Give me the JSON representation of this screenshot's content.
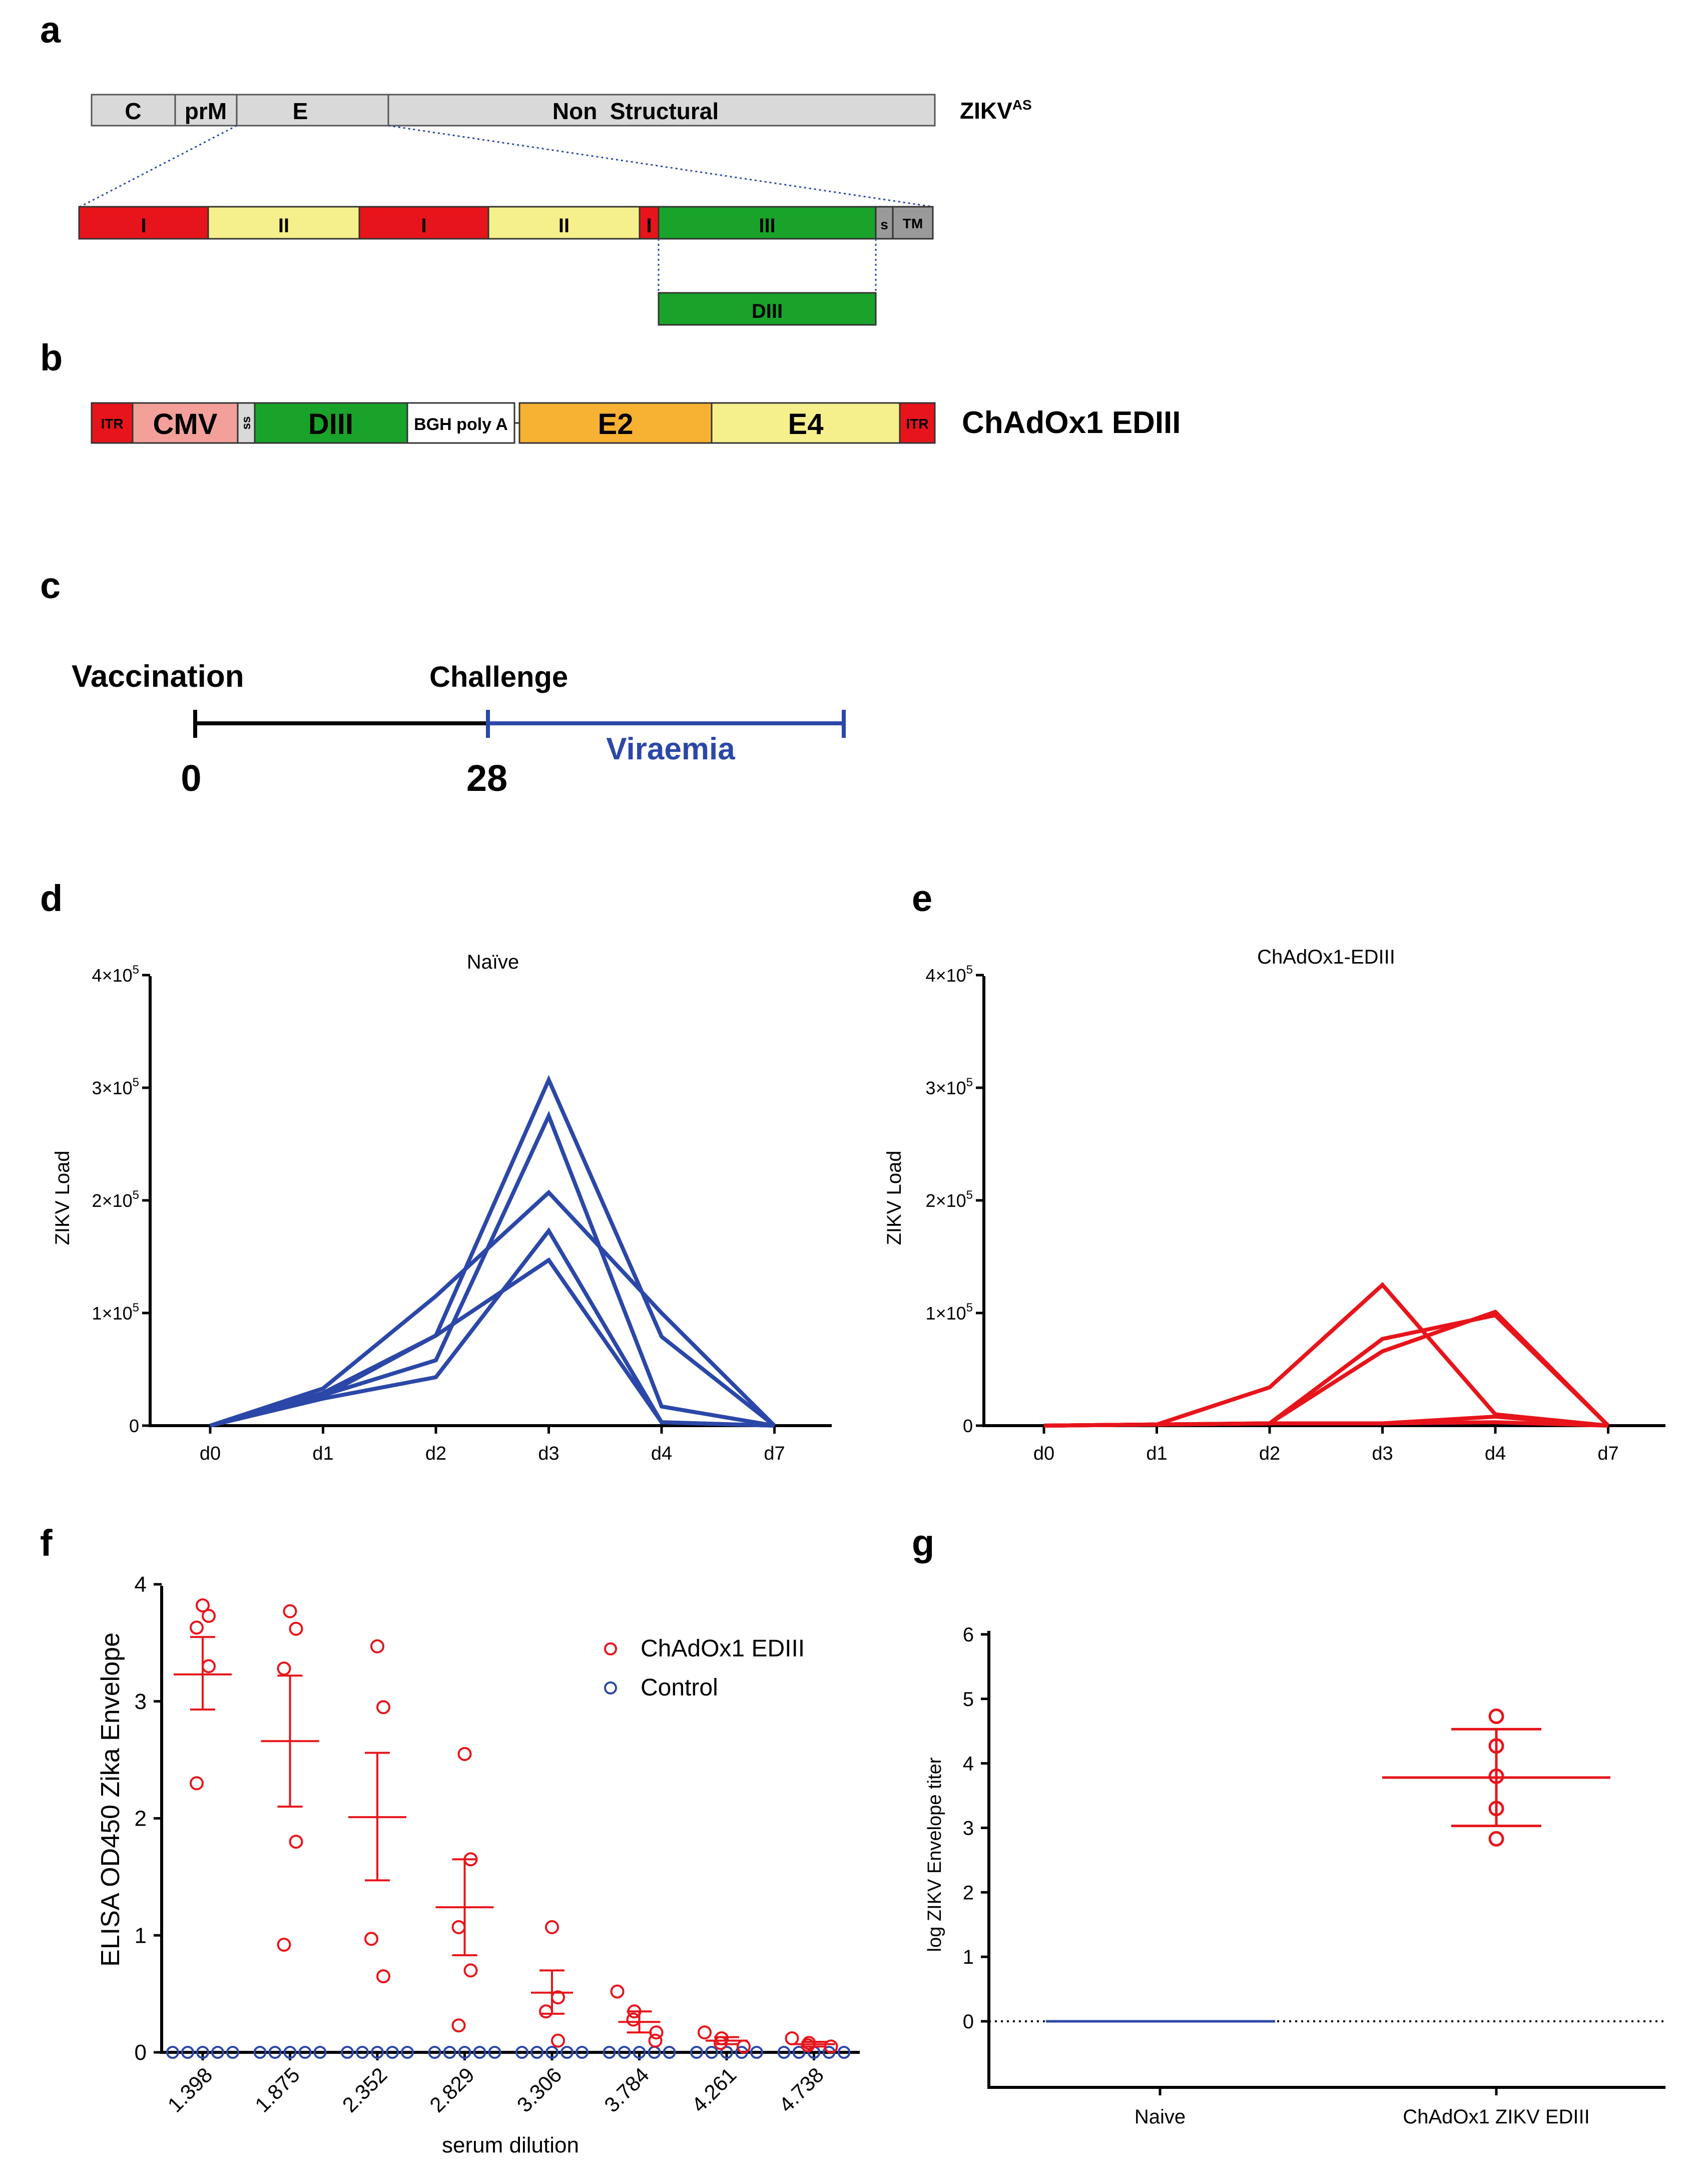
{
  "colors": {
    "red": "#e8141b",
    "blue": "#2b48a8",
    "black": "#000000",
    "grey": "#d9d9d9",
    "dark_grey": "#9a9a9a",
    "domain_red": "#e8141b",
    "domain_yellow": "#f6f08c",
    "domain_green": "#1aa32a",
    "cmv_pink": "#f4a09a",
    "e2_orange": "#f7b233",
    "e4_yellow": "#f6f08c"
  },
  "panels": {
    "a": "a",
    "b": "b",
    "c": "c",
    "d": "d",
    "e": "e",
    "f": "f",
    "g": "g"
  },
  "panel_a": {
    "top_bar": [
      "C",
      "prM",
      "E",
      "Non  Structural"
    ],
    "top_label": "ZIKV",
    "top_label_sup": "AS",
    "domains": [
      "I",
      "II",
      "I",
      "II",
      "I",
      "III",
      "s",
      "TM"
    ],
    "diii": "DIII"
  },
  "panel_b": {
    "segments": [
      "ITR",
      "CMV",
      "ss",
      "DIII",
      "BGH poly A",
      "E2",
      "E4",
      "ITR"
    ],
    "label": "ChAdOx1 EDIII"
  },
  "panel_c": {
    "vaccination": "Vaccination",
    "challenge": "Challenge",
    "viraemia": "Viraemia",
    "t0": "0",
    "t28": "28"
  },
  "chart_data": [
    {
      "panel": "d",
      "type": "line",
      "title": "Naïve",
      "xlabel": "",
      "ylabel": "ZIKV Load",
      "categories": [
        "d0",
        "d1",
        "d2",
        "d3",
        "d4",
        "d7"
      ],
      "ylim": [
        0,
        400000
      ],
      "yticks": [
        "0",
        "1×10",
        "2×10",
        "3×10",
        "4×10"
      ],
      "ytick_exp": "5",
      "series": [
        {
          "values": [
            0,
            33000,
            115000,
            207000,
            100000,
            0
          ]
        },
        {
          "values": [
            0,
            26000,
            80000,
            307000,
            79000,
            0
          ]
        },
        {
          "values": [
            0,
            27000,
            58000,
            275000,
            17000,
            0
          ]
        },
        {
          "values": [
            0,
            24000,
            43000,
            173000,
            3000,
            0
          ]
        },
        {
          "values": [
            0,
            29000,
            80000,
            147000,
            3000,
            0
          ]
        }
      ]
    },
    {
      "panel": "e",
      "type": "line",
      "title": "ChAdOx1-EDIII",
      "xlabel": "",
      "ylabel": "ZIKV Load",
      "categories": [
        "d0",
        "d1",
        "d2",
        "d3",
        "d4",
        "d7"
      ],
      "ylim": [
        0,
        400000
      ],
      "yticks": [
        "0",
        "1×10",
        "2×10",
        "3×10",
        "4×10"
      ],
      "ytick_exp": "5",
      "series": [
        {
          "values": [
            0,
            1000,
            34000,
            125000,
            10000,
            0
          ]
        },
        {
          "values": [
            0,
            1000,
            2000,
            77000,
            98000,
            0
          ]
        },
        {
          "values": [
            0,
            1000,
            2000,
            66000,
            101000,
            0
          ]
        },
        {
          "values": [
            0,
            1000,
            2000,
            2000,
            8000,
            0
          ]
        },
        {
          "values": [
            0,
            1000,
            2000,
            2000,
            3000,
            0
          ]
        }
      ]
    },
    {
      "panel": "f",
      "type": "scatter",
      "xlabel": "serum dilution",
      "ylabel": "ELISA  OD450 Zika Envelope",
      "ylim": [
        0,
        4
      ],
      "yticks": [
        "0",
        "1",
        "2",
        "3",
        "4"
      ],
      "categories": [
        "1.398",
        "1.875",
        "2.352",
        "2.829",
        "3.306",
        "3.784",
        "4.261",
        "4.738"
      ],
      "legend": [
        "ChAdOx1 EDIII",
        "Control"
      ],
      "series": [
        {
          "name": "ChAdOx1 EDIII",
          "points": [
            [
              3.82,
              3.73,
              3.63,
              3.3,
              2.3
            ],
            [
              3.77,
              3.62,
              3.28,
              1.8,
              0.92
            ],
            [
              3.47,
              2.95,
              0.97,
              0.65
            ],
            [
              2.55,
              1.65,
              1.07,
              0.7,
              0.23
            ],
            [
              1.07,
              0.47,
              0.35,
              0.1
            ],
            [
              0.52,
              0.35,
              0.28,
              0.17,
              0.1
            ],
            [
              0.17,
              0.12,
              0.08,
              0.05
            ],
            [
              0.12,
              0.08,
              0.06,
              0.05
            ]
          ],
          "mean": [
            3.23,
            2.66,
            2.01,
            1.24,
            0.51,
            0.26,
            0.1,
            0.07
          ],
          "err_hi": [
            3.55,
            3.22,
            2.56,
            1.65,
            0.7,
            0.35,
            0.13,
            0.09
          ],
          "err_lo": [
            2.93,
            2.1,
            1.47,
            0.83,
            0.33,
            0.17,
            0.07,
            0.05
          ]
        },
        {
          "name": "Control",
          "points_per_group": [
            5,
            5,
            5,
            5,
            5,
            5,
            5,
            5
          ],
          "value": 0
        }
      ]
    },
    {
      "panel": "g",
      "type": "scatter",
      "xlabel": "",
      "ylabel": "log ZIKV Envelope titer",
      "ylim": [
        0,
        6
      ],
      "yticks": [
        "0",
        "1",
        "2",
        "3",
        "4",
        "5",
        "6"
      ],
      "categories": [
        "Naive",
        "ChAdOx1 ZIKV EDIII"
      ],
      "series": [
        {
          "name": "Naive",
          "mean": 0
        },
        {
          "name": "ChAdOx1 ZIKV EDIII",
          "points": [
            4.73,
            4.27,
            3.8,
            3.3,
            2.83
          ],
          "mean": 3.78,
          "err_hi": 4.53,
          "err_lo": 3.03
        }
      ]
    }
  ]
}
